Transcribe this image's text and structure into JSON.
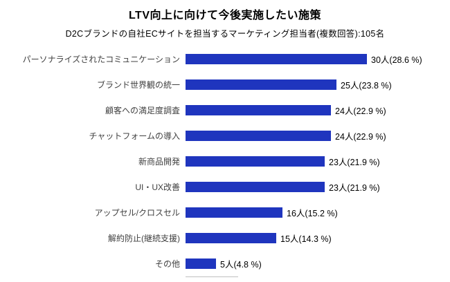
{
  "chart": {
    "title": "LTV向上に向けて今後実施したい施策",
    "subtitle": "D2Cブランドの自社ECサイトを担当するマーケティング担当者(複数回答):105名"
  },
  "chart_data": {
    "type": "bar",
    "orientation": "horizontal",
    "title": "LTV向上に向けて今後実施したい施策",
    "subtitle": "D2Cブランドの自社ECサイトを担当するマーケティング担当者(複数回答):105名",
    "total_respondents": 105,
    "categories": [
      "パーソナライズされたコミュニケーション",
      "ブランド世界観の統一",
      "顧客への満足度調査",
      "チャットフォームの導入",
      "新商品開発",
      "UI・UX改善",
      "アップセル/クロスセル",
      "解約防止(継続支援)",
      "その他"
    ],
    "values": [
      30,
      25,
      24,
      24,
      23,
      23,
      16,
      15,
      5
    ],
    "percentages": [
      28.6,
      23.8,
      22.9,
      22.9,
      21.9,
      21.9,
      15.2,
      14.3,
      4.8
    ],
    "value_labels": [
      "30人(28.6 %)",
      "25人(23.8 %)",
      "24人(22.9 %)",
      "24人(22.9 %)",
      "23人(21.9 %)",
      "23人(21.9 %)",
      "16人(15.2 %)",
      "15人(14.3 %)",
      "5人(4.8 %)"
    ],
    "bar_color": "#1f35be",
    "xlim": [
      0,
      30
    ],
    "grid": false,
    "legend": "none"
  }
}
